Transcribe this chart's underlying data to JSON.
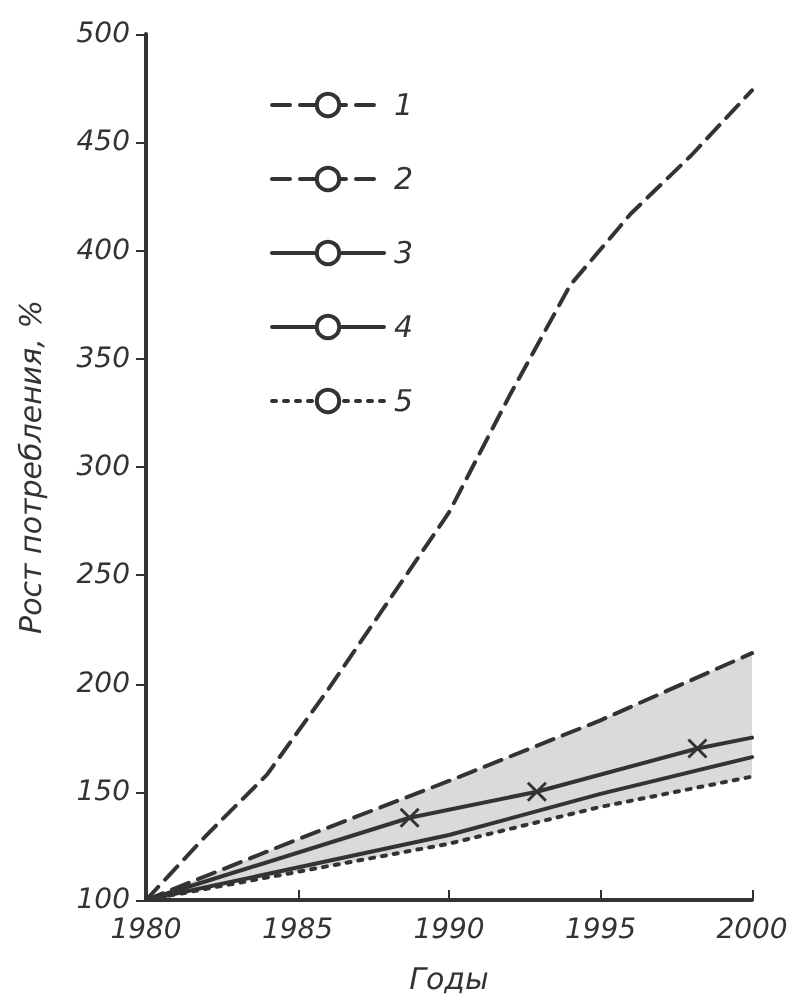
{
  "chart_data": {
    "type": "line",
    "xlabel": "Годы",
    "ylabel": "Рост потребления, %",
    "xlim": [
      1980,
      2000
    ],
    "xticks": [
      1980,
      1985,
      1990,
      1995,
      2000
    ],
    "ylim": [
      100,
      500
    ],
    "yticks": [
      100,
      150,
      200,
      250,
      300,
      350,
      400,
      450,
      500
    ],
    "grid": false,
    "legend": "top left",
    "marker": "none",
    "series": [
      {
        "name": "1",
        "color": "#333333",
        "line_style": "dashed",
        "x": [
          1980,
          1982,
          1984,
          1986,
          1988,
          1990,
          1992,
          1994,
          1996,
          1998,
          2000
        ],
        "values": [
          100,
          130,
          158,
          197,
          238,
          279,
          333,
          384,
          417,
          444,
          474
        ]
      },
      {
        "name": "2",
        "color": "#333333",
        "line_style": "dashed",
        "x": [
          1980,
          1985,
          1990,
          1995,
          2000
        ],
        "values": [
          100,
          128,
          155,
          183,
          214
        ]
      },
      {
        "name": "3",
        "color": "#333333",
        "line_style": "solid",
        "marker": "cross",
        "x": [
          1980,
          1988.7,
          1992.9,
          1998.2,
          2000
        ],
        "values": [
          100,
          138,
          150,
          170,
          175
        ]
      },
      {
        "name": "4",
        "color": "#333333",
        "line_style": "solid",
        "x": [
          1980,
          1985,
          1990,
          1995,
          2000
        ],
        "values": [
          100,
          115,
          130,
          149,
          166
        ],
        "lower": [
          100,
          113,
          126,
          143,
          157
        ],
        "upper": [
          100,
          128,
          155,
          183,
          214
        ]
      },
      {
        "name": "5",
        "color": "#333333",
        "line_style": "dotted",
        "x": [
          1980,
          1985,
          1990,
          1995,
          2000
        ],
        "values": [
          100,
          113,
          126,
          143,
          157
        ]
      }
    ]
  }
}
